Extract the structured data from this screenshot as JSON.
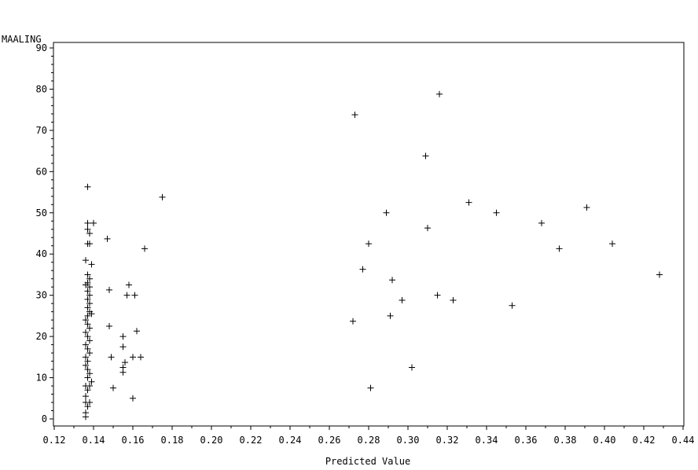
{
  "chart_data": {
    "type": "scatter",
    "title": "",
    "xlabel": "Predicted Value",
    "ylabel": "MAALING",
    "xlim": [
      0.12,
      0.44
    ],
    "ylim": [
      0,
      90
    ],
    "xticks": [
      "0.12",
      "0.14",
      "0.16",
      "0.18",
      "0.20",
      "0.22",
      "0.24",
      "0.26",
      "0.28",
      "0.30",
      "0.32",
      "0.34",
      "0.36",
      "0.38",
      "0.40",
      "0.42",
      "0.44"
    ],
    "yticks": [
      "0",
      "10",
      "20",
      "30",
      "40",
      "50",
      "60",
      "70",
      "80",
      "90"
    ],
    "marker": "+",
    "grid": false,
    "series": [
      {
        "points": [
          [
            0.136,
            0.5
          ],
          [
            0.136,
            1.5
          ],
          [
            0.137,
            3
          ],
          [
            0.136,
            4
          ],
          [
            0.138,
            4
          ],
          [
            0.136,
            5.5
          ],
          [
            0.137,
            7
          ],
          [
            0.136,
            8
          ],
          [
            0.138,
            8
          ],
          [
            0.139,
            9
          ],
          [
            0.137,
            10
          ],
          [
            0.138,
            11
          ],
          [
            0.137,
            12
          ],
          [
            0.136,
            13
          ],
          [
            0.137,
            14
          ],
          [
            0.136,
            15
          ],
          [
            0.138,
            16
          ],
          [
            0.137,
            17
          ],
          [
            0.136,
            18
          ],
          [
            0.138,
            19
          ],
          [
            0.137,
            20
          ],
          [
            0.136,
            21
          ],
          [
            0.138,
            22
          ],
          [
            0.137,
            23
          ],
          [
            0.136,
            24
          ],
          [
            0.137,
            25
          ],
          [
            0.139,
            25.5
          ],
          [
            0.138,
            26
          ],
          [
            0.137,
            27
          ],
          [
            0.138,
            28
          ],
          [
            0.137,
            29
          ],
          [
            0.138,
            30
          ],
          [
            0.137,
            31
          ],
          [
            0.138,
            32
          ],
          [
            0.136,
            32.5
          ],
          [
            0.137,
            33
          ],
          [
            0.138,
            34
          ],
          [
            0.137,
            35
          ],
          [
            0.136,
            38.5
          ],
          [
            0.139,
            37.5
          ],
          [
            0.137,
            42.5
          ],
          [
            0.138,
            42.5
          ],
          [
            0.138,
            45
          ],
          [
            0.137,
            46
          ],
          [
            0.137,
            47.5
          ],
          [
            0.14,
            47.5
          ],
          [
            0.137,
            56.3
          ],
          [
            0.147,
            43.7
          ],
          [
            0.148,
            31.3
          ],
          [
            0.148,
            22.5
          ],
          [
            0.149,
            15
          ],
          [
            0.15,
            7.5
          ],
          [
            0.155,
            17.5
          ],
          [
            0.155,
            20
          ],
          [
            0.155,
            11.3
          ],
          [
            0.155,
            12.5
          ],
          [
            0.156,
            13.7
          ],
          [
            0.157,
            30
          ],
          [
            0.158,
            32.5
          ],
          [
            0.16,
            15
          ],
          [
            0.16,
            5
          ],
          [
            0.161,
            30
          ],
          [
            0.162,
            21.3
          ],
          [
            0.164,
            15
          ],
          [
            0.166,
            41.3
          ],
          [
            0.175,
            53.8
          ],
          [
            0.272,
            23.7
          ],
          [
            0.273,
            73.8
          ],
          [
            0.277,
            36.3
          ],
          [
            0.28,
            42.5
          ],
          [
            0.281,
            7.5
          ],
          [
            0.289,
            50
          ],
          [
            0.291,
            25
          ],
          [
            0.292,
            33.7
          ],
          [
            0.297,
            28.8
          ],
          [
            0.302,
            12.5
          ],
          [
            0.309,
            63.8
          ],
          [
            0.31,
            46.3
          ],
          [
            0.315,
            30
          ],
          [
            0.316,
            78.8
          ],
          [
            0.323,
            28.8
          ],
          [
            0.331,
            52.5
          ],
          [
            0.345,
            50
          ],
          [
            0.353,
            27.5
          ],
          [
            0.368,
            47.5
          ],
          [
            0.377,
            41.3
          ],
          [
            0.391,
            51.3
          ],
          [
            0.404,
            42.5
          ],
          [
            0.428,
            35
          ]
        ]
      }
    ]
  }
}
